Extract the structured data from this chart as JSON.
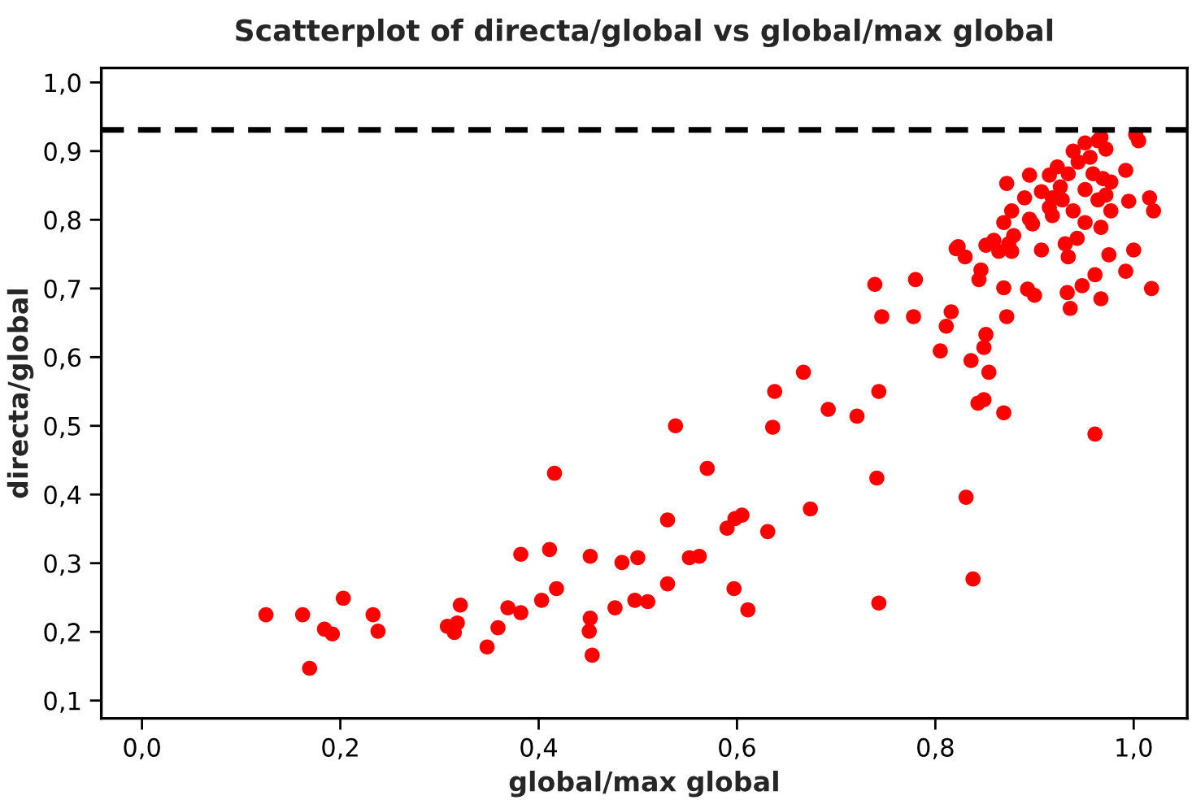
{
  "chart_data": {
    "type": "scatter",
    "title": "Scatterplot of directa/global vs global/max global",
    "xlabel": "global/max global",
    "ylabel": "directa/global",
    "x": [
      0.125,
      0.162,
      0.169,
      0.184,
      0.192,
      0.203,
      0.233,
      0.238,
      0.308,
      0.315,
      0.318,
      0.321,
      0.348,
      0.359,
      0.369,
      0.382,
      0.382,
      0.403,
      0.411,
      0.418,
      0.416,
      0.451,
      0.452,
      0.454,
      0.452,
      0.477,
      0.484,
      0.497,
      0.5,
      0.51,
      0.53,
      0.53,
      0.538,
      0.552,
      0.562,
      0.57,
      0.59,
      0.598,
      0.605,
      0.597,
      0.611,
      0.631,
      0.636,
      0.638,
      0.667,
      0.674,
      0.692,
      0.721,
      0.739,
      0.741,
      0.743,
      0.743,
      0.746,
      0.78,
      0.778,
      0.805,
      0.811,
      0.816,
      0.823,
      0.836,
      0.831,
      0.838,
      0.846,
      0.849,
      0.854,
      0.849,
      0.864,
      0.869,
      0.869,
      0.872,
      0.895,
      1.016,
      1.02,
      1.018,
      0.967,
      0.992,
      1.0,
      0.995,
      0.992,
      1.005,
      1.002,
      0.967,
      0.936,
      0.933,
      0.948,
      0.961,
      0.975,
      0.934,
      0.907,
      0.877,
      0.874,
      0.879,
      0.869,
      0.877,
      0.89,
      0.898,
      0.918,
      0.915,
      0.923,
      0.939,
      0.951,
      0.964,
      0.972,
      0.969,
      0.972,
      0.977,
      0.967,
      0.951,
      0.943,
      0.931,
      0.939,
      0.928,
      0.951,
      0.959,
      0.944,
      0.934,
      0.907,
      0.918,
      0.895,
      0.859,
      0.851,
      0.821,
      0.83,
      0.844,
      0.872,
      0.851,
      0.893,
      0.9,
      0.961,
      0.843,
      0.956,
      0.964,
      0.926,
      0.915,
      0.977
    ],
    "series": [
      {
        "color": "#ff0000",
        "values": [
          0.225,
          0.225,
          0.147,
          0.204,
          0.197,
          0.249,
          0.225,
          0.201,
          0.208,
          0.199,
          0.213,
          0.239,
          0.178,
          0.206,
          0.235,
          0.228,
          0.313,
          0.246,
          0.32,
          0.263,
          0.431,
          0.201,
          0.22,
          0.166,
          0.31,
          0.235,
          0.301,
          0.246,
          0.308,
          0.244,
          0.27,
          0.363,
          0.5,
          0.308,
          0.31,
          0.438,
          0.351,
          0.365,
          0.37,
          0.263,
          0.232,
          0.346,
          0.498,
          0.55,
          0.578,
          0.379,
          0.524,
          0.514,
          0.706,
          0.424,
          0.242,
          0.55,
          0.659,
          0.713,
          0.659,
          0.609,
          0.645,
          0.666,
          0.761,
          0.595,
          0.396,
          0.277,
          0.727,
          0.538,
          0.578,
          0.614,
          0.754,
          0.519,
          0.701,
          0.853,
          0.865,
          0.832,
          0.813,
          0.7,
          0.685,
          0.725,
          0.756,
          0.827,
          0.872,
          0.915,
          0.924,
          0.92,
          0.671,
          0.694,
          0.704,
          0.72,
          0.749,
          0.746,
          0.756,
          0.754,
          0.765,
          0.777,
          0.796,
          0.813,
          0.832,
          0.794,
          0.806,
          0.865,
          0.877,
          0.9,
          0.912,
          0.915,
          0.903,
          0.86,
          0.836,
          0.813,
          0.789,
          0.796,
          0.773,
          0.765,
          0.813,
          0.829,
          0.844,
          0.867,
          0.884,
          0.867,
          0.841,
          0.832,
          0.801,
          0.77,
          0.763,
          0.758,
          0.746,
          0.713,
          0.659,
          0.633,
          0.699,
          0.69,
          0.488,
          0.533,
          0.891,
          0.829,
          0.848,
          0.818,
          0.855
        ]
      }
    ],
    "marker": "circle",
    "xlim": [
      -0.041,
      1.054
    ],
    "ylim": [
      0.074,
      1.021
    ],
    "xticks": [
      {
        "value": 0,
        "label": "0,0"
      },
      {
        "value": 0.2,
        "label": "0,2"
      },
      {
        "value": 0.4,
        "label": "0,4"
      },
      {
        "value": 0.6,
        "label": "0,6"
      },
      {
        "value": 0.8,
        "label": "0,8"
      },
      {
        "value": 1.0,
        "label": "1,0"
      }
    ],
    "yticks": [
      {
        "value": 0.1,
        "label": "0,1"
      },
      {
        "value": 0.2,
        "label": "0,2"
      },
      {
        "value": 0.3,
        "label": "0,3"
      },
      {
        "value": 0.4,
        "label": "0,4"
      },
      {
        "value": 0.5,
        "label": "0,5"
      },
      {
        "value": 0.6,
        "label": "0,6"
      },
      {
        "value": 0.7,
        "label": "0,7"
      },
      {
        "value": 0.8,
        "label": "0,8"
      },
      {
        "value": 0.9,
        "label": "0,9"
      },
      {
        "value": 1.0,
        "label": "1,0"
      }
    ],
    "ref_lines": [
      {
        "axis": "y",
        "value": 0.931,
        "color": "#000000",
        "line_style": "dashed"
      }
    ],
    "grid": false,
    "legend": false
  }
}
